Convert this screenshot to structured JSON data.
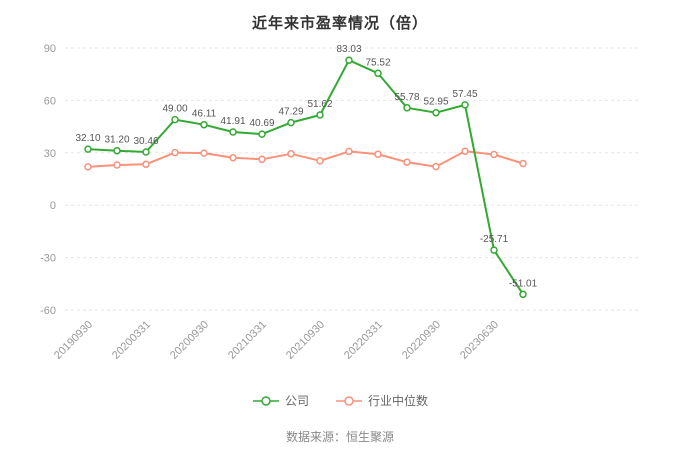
{
  "title": "近年来市盈率情况（倍）",
  "source_note": "数据来源：恒生聚源",
  "colors": {
    "company": "#33A933",
    "industry": "#F9917B",
    "grid": "#E6E6E6",
    "axis_text": "#999999",
    "data_label": "#555555",
    "title_text": "#333333"
  },
  "legend": {
    "items": [
      {
        "label": "公司"
      },
      {
        "label": "行业中位数"
      }
    ]
  },
  "chart_data": {
    "type": "line",
    "title": "近年来市盈率情况（倍）",
    "ylim": [
      -60,
      90
    ],
    "yticks": [
      90,
      60,
      30,
      0,
      -30,
      -60
    ],
    "grid": "dashed-horizontal",
    "legend_position": "bottom",
    "x_ticks": [
      {
        "i": 0,
        "label": "20190930"
      },
      {
        "i": 2,
        "label": "20200331"
      },
      {
        "i": 4,
        "label": "20200930"
      },
      {
        "i": 6,
        "label": "20210331"
      },
      {
        "i": 8,
        "label": "20210930"
      },
      {
        "i": 10,
        "label": "20220331"
      },
      {
        "i": 12,
        "label": "20220930"
      },
      {
        "i": 14,
        "label": "20230630"
      }
    ],
    "series": [
      {
        "name": "公司",
        "color": "#33A933",
        "show_labels": true,
        "values": [
          32.1,
          31.2,
          30.46,
          49.0,
          46.11,
          41.91,
          40.69,
          47.29,
          51.62,
          83.03,
          75.52,
          55.78,
          52.95,
          57.45,
          -25.71,
          -51.01
        ]
      },
      {
        "name": "行业中位数",
        "color": "#F9917B",
        "show_labels": false,
        "values": [
          21.9,
          23.0,
          23.4,
          30.1,
          29.8,
          27.2,
          26.3,
          29.4,
          25.4,
          30.8,
          29.2,
          24.6,
          22.1,
          30.9,
          29.0,
          23.9
        ]
      }
    ]
  }
}
